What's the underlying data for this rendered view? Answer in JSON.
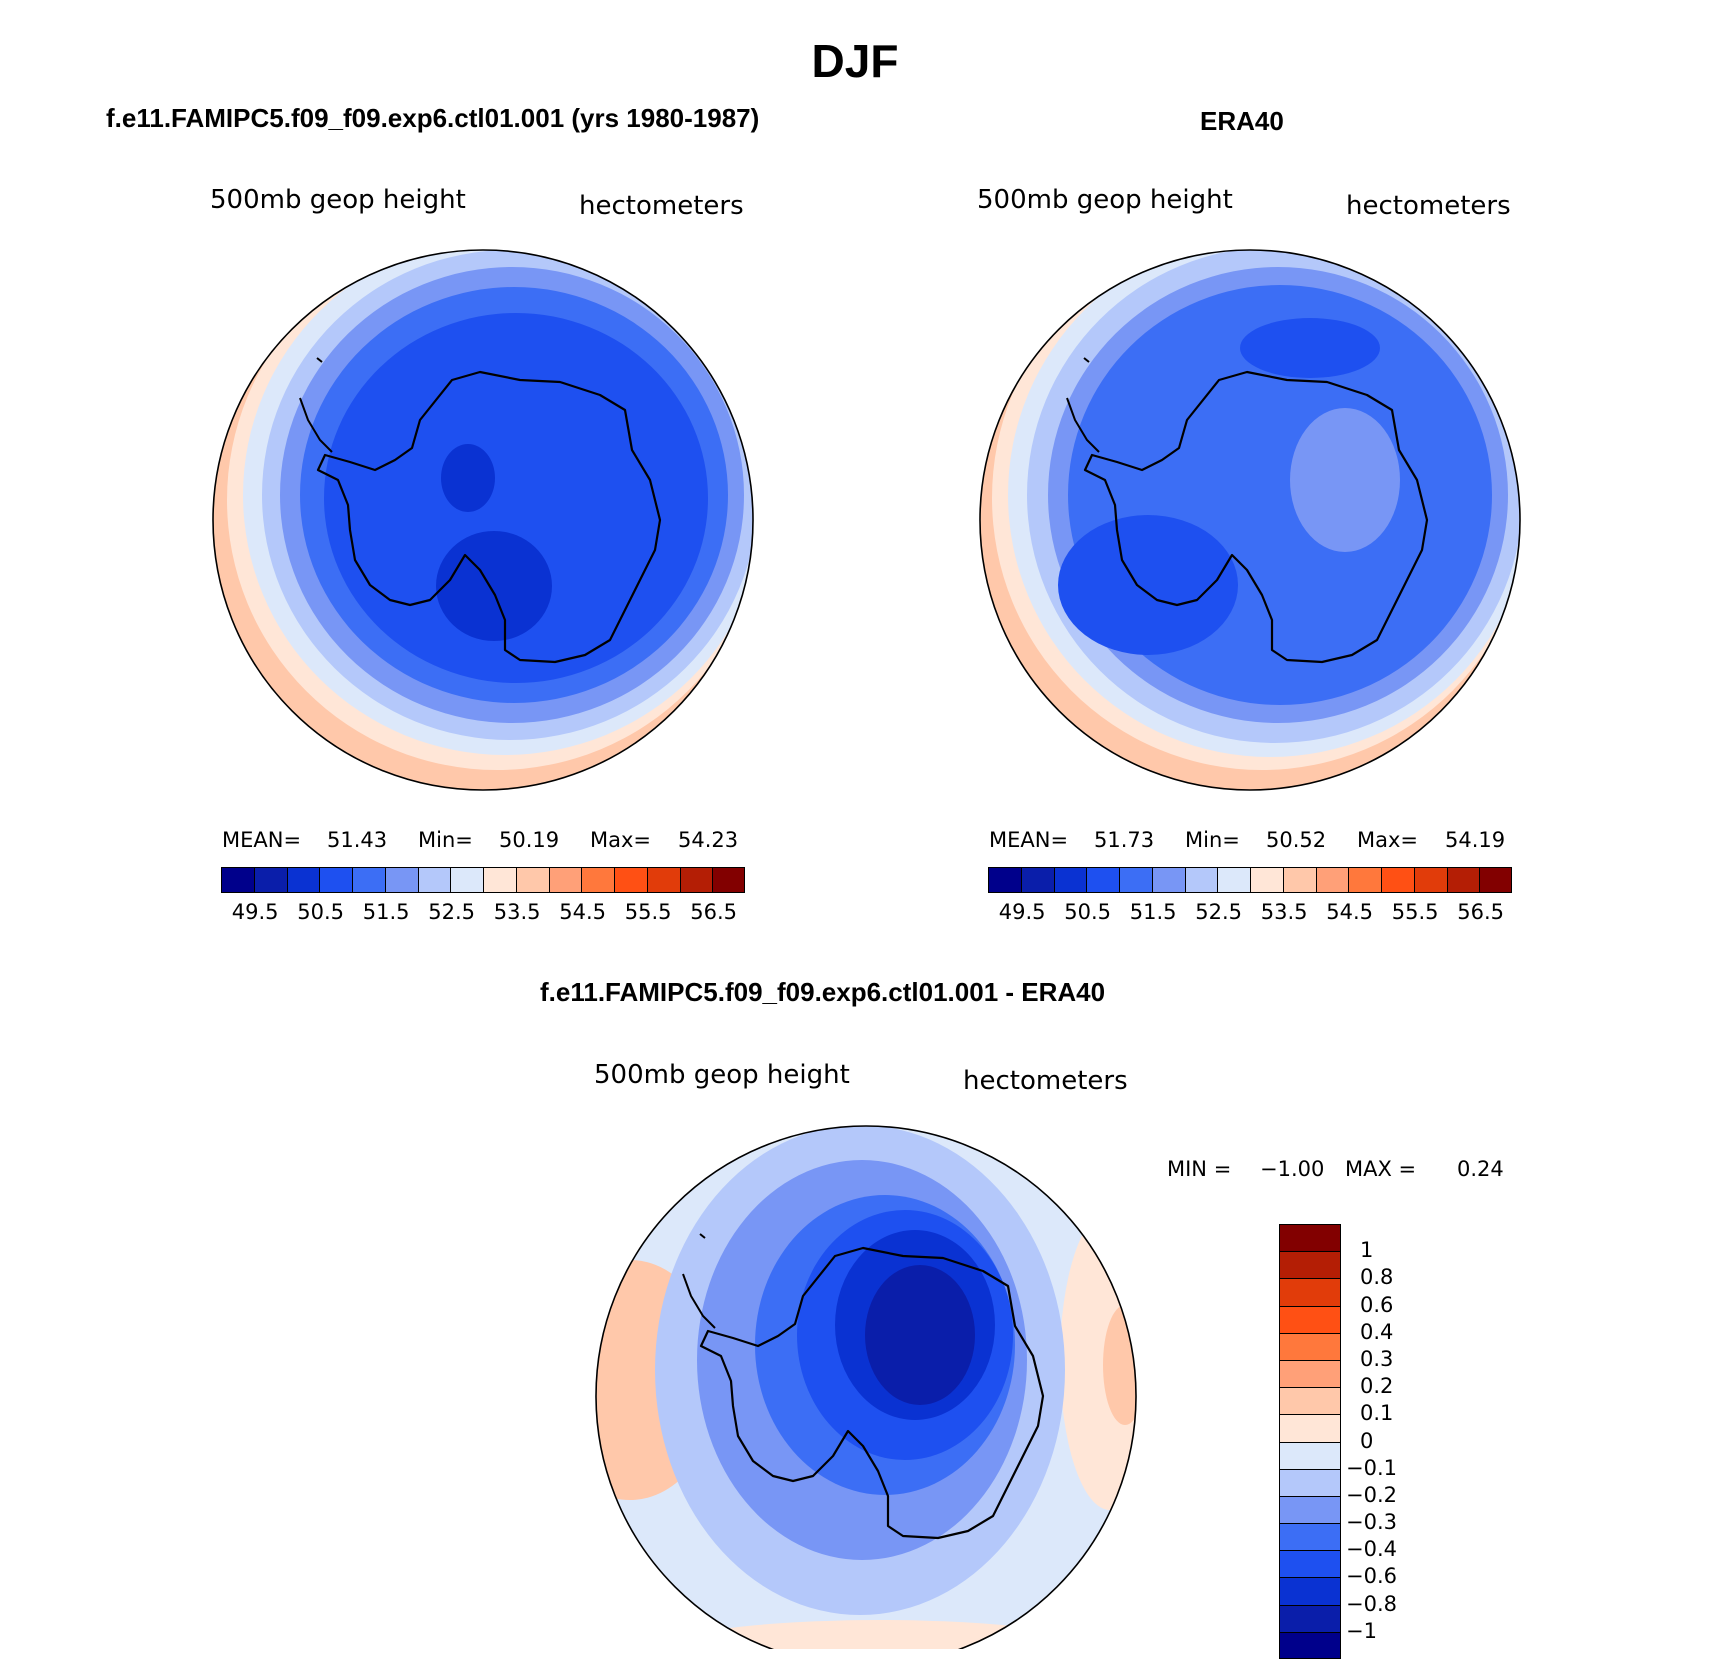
{
  "figure": {
    "title": "DJF"
  },
  "chart_data": [
    {
      "type": "heatmap",
      "panel": "model",
      "title": "f.e11.FAMIPC5.f09_f09.exp6.ctl01.001 (yrs 1980-1987)",
      "variable_label": "500mb geop height",
      "units_label": "hectometers",
      "projection": "south polar stereographic",
      "stats": {
        "mean_label": "MEAN=",
        "mean": "51.43",
        "min_label": "Min=",
        "min": "50.19",
        "max_label": "Max=",
        "max": "54.23"
      },
      "colorbar": {
        "orientation": "horizontal",
        "colors": [
          "#00008B",
          "#0A1EAA",
          "#0A32D2",
          "#1E50F0",
          "#3C6EF5",
          "#7896F5",
          "#B4C8FA",
          "#DCE8FA",
          "#FFE6D7",
          "#FFC8AA",
          "#FFA078",
          "#FF783C",
          "#FF5014",
          "#E13C0A",
          "#B41E05",
          "#820000"
        ],
        "tick_labels": [
          "49.5",
          "50.5",
          "51.5",
          "52.5",
          "53.5",
          "54.5",
          "55.5",
          "56.5"
        ]
      },
      "levels": [
        49.5,
        50,
        50.5,
        51,
        51.5,
        52,
        52.5,
        53,
        53.5,
        54,
        54.5,
        55,
        55.5,
        56,
        56.5
      ]
    },
    {
      "type": "heatmap",
      "panel": "observations",
      "title": "ERA40",
      "variable_label": "500mb geop height",
      "units_label": "hectometers",
      "projection": "south polar stereographic",
      "stats": {
        "mean_label": "MEAN=",
        "mean": "51.73",
        "min_label": "Min=",
        "min": "50.52",
        "max_label": "Max=",
        "max": "54.19"
      },
      "colorbar": {
        "orientation": "horizontal",
        "colors": [
          "#00008B",
          "#0A1EAA",
          "#0A32D2",
          "#1E50F0",
          "#3C6EF5",
          "#7896F5",
          "#B4C8FA",
          "#DCE8FA",
          "#FFE6D7",
          "#FFC8AA",
          "#FFA078",
          "#FF783C",
          "#FF5014",
          "#E13C0A",
          "#B41E05",
          "#820000"
        ],
        "tick_labels": [
          "49.5",
          "50.5",
          "51.5",
          "52.5",
          "53.5",
          "54.5",
          "55.5",
          "56.5"
        ]
      },
      "levels": [
        49.5,
        50,
        50.5,
        51,
        51.5,
        52,
        52.5,
        53,
        53.5,
        54,
        54.5,
        55,
        55.5,
        56,
        56.5
      ]
    },
    {
      "type": "heatmap",
      "panel": "difference",
      "title": "f.e11.FAMIPC5.f09_f09.exp6.ctl01.001 - ERA40",
      "variable_label": "500mb geop height",
      "units_label": "hectometers",
      "projection": "south polar stereographic",
      "stats": {
        "min_label": "MIN =",
        "min": "−1.00",
        "max_label": "MAX =",
        "max": "0.24"
      },
      "colorbar": {
        "orientation": "vertical",
        "colors": [
          "#820000",
          "#B41E05",
          "#E13C0A",
          "#FF5014",
          "#FF783C",
          "#FFA078",
          "#FFC8AA",
          "#FFE6D7",
          "#DCE8FA",
          "#B4C8FA",
          "#7896F5",
          "#3C6EF5",
          "#1E50F0",
          "#0A32D2",
          "#0A1EAA",
          "#00008B"
        ],
        "tick_labels": [
          "1",
          "0.8",
          "0.6",
          "0.4",
          "0.3",
          "0.2",
          "0.1",
          "0",
          "−0.1",
          "−0.2",
          "−0.3",
          "−0.4",
          "−0.6",
          "−0.8",
          "−1"
        ]
      },
      "levels": [
        1,
        0.8,
        0.6,
        0.4,
        0.3,
        0.2,
        0.1,
        0,
        -0.1,
        -0.2,
        -0.3,
        -0.4,
        -0.6,
        -0.8,
        -1
      ]
    }
  ]
}
